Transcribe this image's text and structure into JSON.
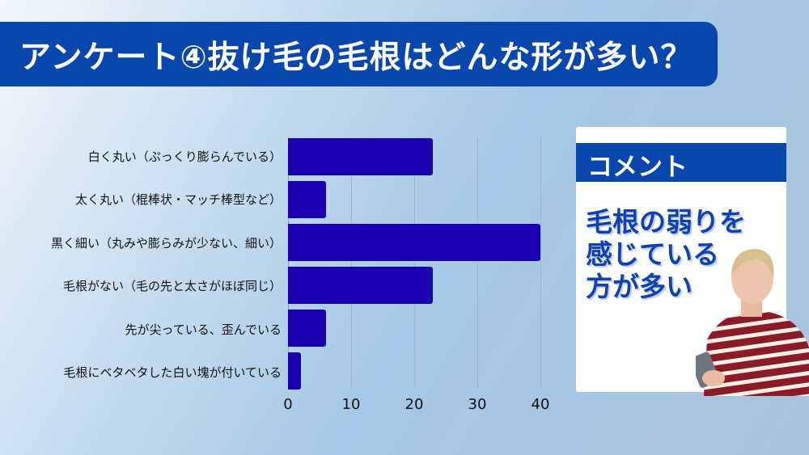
{
  "title": "アンケート④抜け毛の毛根はどんな形が多い？",
  "colors": {
    "title_bg": "#0a47ad",
    "bar": "#1a00ae",
    "comment_text": "#1240b0"
  },
  "chart_data": {
    "type": "bar",
    "orientation": "horizontal",
    "title": "アンケート④抜け毛の毛根はどんな形が多い？",
    "categories": [
      "白く丸い（ぷっくり膨らんでいる）",
      "太く丸い（棍棒状・マッチ棒型など）",
      "黒く細い（丸みや膨らみが少ない、細い）",
      "毛根がない（毛の先と太さがほぼ同じ）",
      "先が尖っている、歪んでいる",
      "毛根にベタベタした白い塊が付いている"
    ],
    "values": [
      23,
      6,
      40,
      23,
      6,
      2
    ],
    "xlabel": "",
    "ylabel": "",
    "xlim": [
      0,
      40
    ],
    "xticks": [
      "0",
      "10",
      "20",
      "30",
      "40"
    ],
    "grid": true,
    "legend": null
  },
  "comment": {
    "header": "コメント",
    "lines": [
      "毛根の弱りを",
      "感じている",
      "方が多い"
    ]
  }
}
